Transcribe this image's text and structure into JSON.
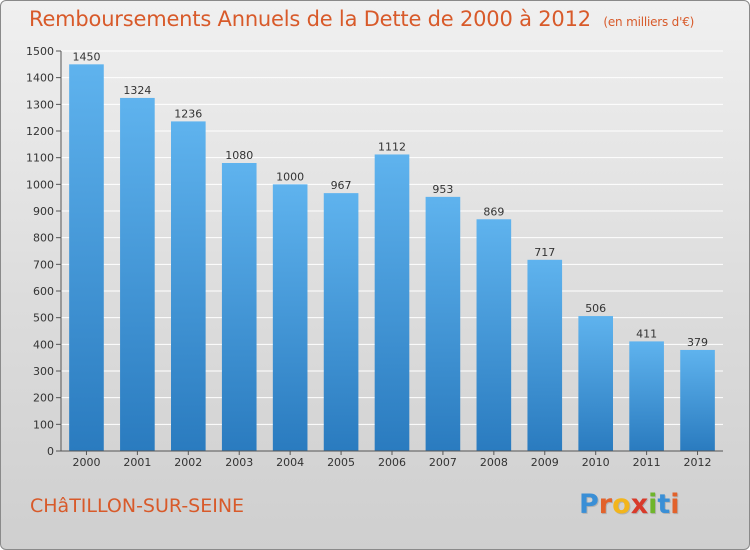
{
  "title": "Remboursements Annuels de la Dette de 2000 à 2012",
  "subtitle": "(en milliers d'€)",
  "city": "CHâTILLON-SUR-SEINE",
  "logo": {
    "text": "Proxiti",
    "letters": [
      {
        "char": "P",
        "color": "#3a8fd6"
      },
      {
        "char": "r",
        "color": "#e2622b"
      },
      {
        "char": "o",
        "color": "#f2b51c"
      },
      {
        "char": "x",
        "color": "#d83a2a"
      },
      {
        "char": "i",
        "color": "#6fb52c"
      },
      {
        "char": "t",
        "color": "#3a8fd6"
      },
      {
        "char": "i",
        "color": "#e2622b"
      }
    ]
  },
  "colors": {
    "title": "#d85a2a",
    "bar_light": "#5fb3ee",
    "bar_dark": "#2a7bbf",
    "grid": "#ffffff",
    "axis_text": "#333333"
  },
  "chart_data": {
    "type": "bar",
    "categories": [
      "2000",
      "2001",
      "2002",
      "2003",
      "2004",
      "2005",
      "2006",
      "2007",
      "2008",
      "2009",
      "2010",
      "2011",
      "2012"
    ],
    "values": [
      1450,
      1324,
      1236,
      1080,
      1000,
      967,
      1112,
      953,
      869,
      717,
      506,
      411,
      379
    ],
    "ylim": [
      0,
      1500
    ],
    "ytick_step": 100,
    "grid": true,
    "data_labels": true
  }
}
